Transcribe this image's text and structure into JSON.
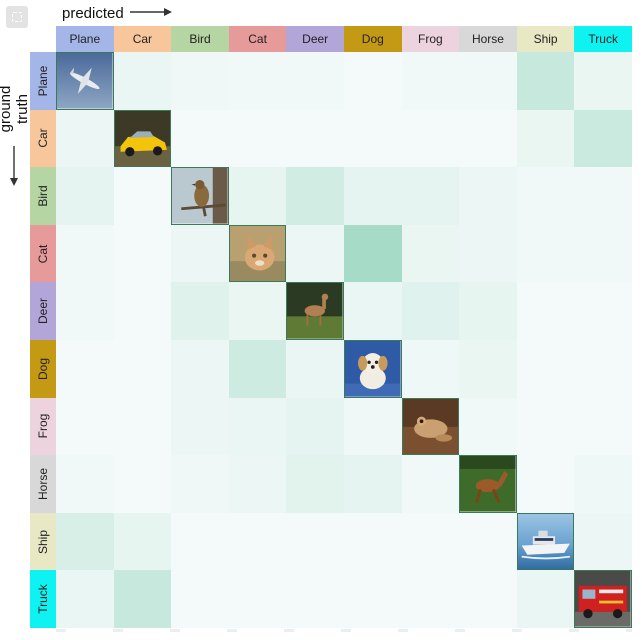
{
  "chart_data": {
    "type": "heatmap",
    "xlabel": "predicted",
    "ylabel": "ground truth",
    "classes": [
      "Plane",
      "Car",
      "Bird",
      "Cat",
      "Deer",
      "Dog",
      "Frog",
      "Horse",
      "Ship",
      "Truck"
    ],
    "header_colors": [
      "#a4b6e8",
      "#f7c79b",
      "#b5d5a2",
      "#e69a9a",
      "#b2a5d8",
      "#c49a14",
      "#edd3de",
      "#d8d8d8",
      "#e8e8c4",
      "#0ff2f2"
    ],
    "diagonal_images": [
      "airplane-photo",
      "yellow-car-photo",
      "bird-photo",
      "kitten-photo",
      "deer-photo",
      "puppy-photo",
      "frog-photo",
      "horse-photo",
      "ship-photo",
      "fire-truck-photo"
    ],
    "intensity": [
      [
        1.0,
        0.07,
        0.04,
        0.03,
        0.03,
        0.02,
        0.03,
        0.03,
        0.28,
        0.08
      ],
      [
        0.06,
        1.0,
        0.01,
        0.02,
        0.01,
        0.01,
        0.02,
        0.01,
        0.08,
        0.26
      ],
      [
        0.1,
        0.02,
        1.0,
        0.09,
        0.22,
        0.1,
        0.1,
        0.06,
        0.03,
        0.03
      ],
      [
        0.03,
        0.02,
        0.06,
        1.0,
        0.06,
        0.48,
        0.08,
        0.06,
        0.03,
        0.03
      ],
      [
        0.03,
        0.02,
        0.14,
        0.08,
        1.0,
        0.07,
        0.13,
        0.09,
        0.02,
        0.02
      ],
      [
        0.02,
        0.01,
        0.06,
        0.24,
        0.07,
        1.0,
        0.05,
        0.08,
        0.02,
        0.02
      ],
      [
        0.02,
        0.02,
        0.06,
        0.07,
        0.1,
        0.04,
        1.0,
        0.03,
        0.02,
        0.02
      ],
      [
        0.03,
        0.02,
        0.04,
        0.06,
        0.12,
        0.1,
        0.03,
        1.0,
        0.02,
        0.05
      ],
      [
        0.18,
        0.09,
        0.02,
        0.02,
        0.02,
        0.01,
        0.02,
        0.02,
        1.0,
        0.06
      ],
      [
        0.07,
        0.28,
        0.02,
        0.02,
        0.02,
        0.01,
        0.02,
        0.02,
        0.07,
        1.0
      ]
    ],
    "legend": "none",
    "grid": false
  },
  "colors": {
    "cell_min": "#f6fbfb",
    "cell_max": "#4fb88f",
    "text": "#222222"
  },
  "icons": {
    "corner": "image-placeholder-icon",
    "x_arrow": "arrow-right-icon",
    "y_arrow": "arrow-down-icon"
  }
}
